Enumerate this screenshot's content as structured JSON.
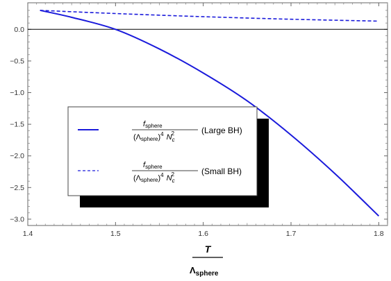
{
  "chart_data": {
    "type": "line",
    "title": "",
    "xlabel": {
      "numerator": "T",
      "denominator": "Λ",
      "denominator_sub": "sphere"
    },
    "ylabel": "",
    "xlim": [
      1.4,
      1.81
    ],
    "ylim": [
      -3.1,
      0.42
    ],
    "xticks": [
      1.4,
      1.5,
      1.6,
      1.7,
      1.8
    ],
    "xtick_labels": [
      "1.4",
      "1.5",
      "1.6",
      "1.7",
      "1.8"
    ],
    "yticks": [
      0.0,
      -0.5,
      -1.0,
      -1.5,
      -2.0,
      -2.5,
      -3.0
    ],
    "ytick_labels": [
      "0.0",
      "−0.5",
      "−1.0",
      "−1.5",
      "−2.0",
      "−2.5",
      "−3.0"
    ],
    "reference_line_y": 0.0,
    "grid": false,
    "legend_position": "center-left",
    "series": [
      {
        "name": "Large BH",
        "style": "solid",
        "color": "#1a1adb",
        "x": [
          1.414,
          1.45,
          1.5,
          1.55,
          1.6,
          1.65,
          1.7,
          1.75,
          1.8
        ],
        "y": [
          0.3,
          0.19,
          0.0,
          -0.31,
          -0.69,
          -1.13,
          -1.67,
          -2.28,
          -2.95
        ]
      },
      {
        "name": "Small BH",
        "style": "dashed",
        "color": "#1a1adb",
        "x": [
          1.414,
          1.5,
          1.6,
          1.7,
          1.8
        ],
        "y": [
          0.3,
          0.25,
          0.2,
          0.16,
          0.13
        ]
      }
    ],
    "legend": {
      "entries": [
        {
          "numerator_f": "f",
          "numerator_sub": "sphere",
          "denominator_lambda": "(Λ",
          "denominator_sub": "sphere",
          "denominator_exp": "4",
          "denominator_n": "N",
          "denominator_n_sub": "c",
          "denominator_n_exp": "2",
          "suffix": "(Large BH)"
        },
        {
          "numerator_f": "f",
          "numerator_sub": "sphere",
          "denominator_lambda": "(Λ",
          "denominator_sub": "sphere",
          "denominator_exp": "4",
          "denominator_n": "N",
          "denominator_n_sub": "c",
          "denominator_n_exp": "2",
          "suffix": "(Small BH)"
        }
      ]
    }
  }
}
